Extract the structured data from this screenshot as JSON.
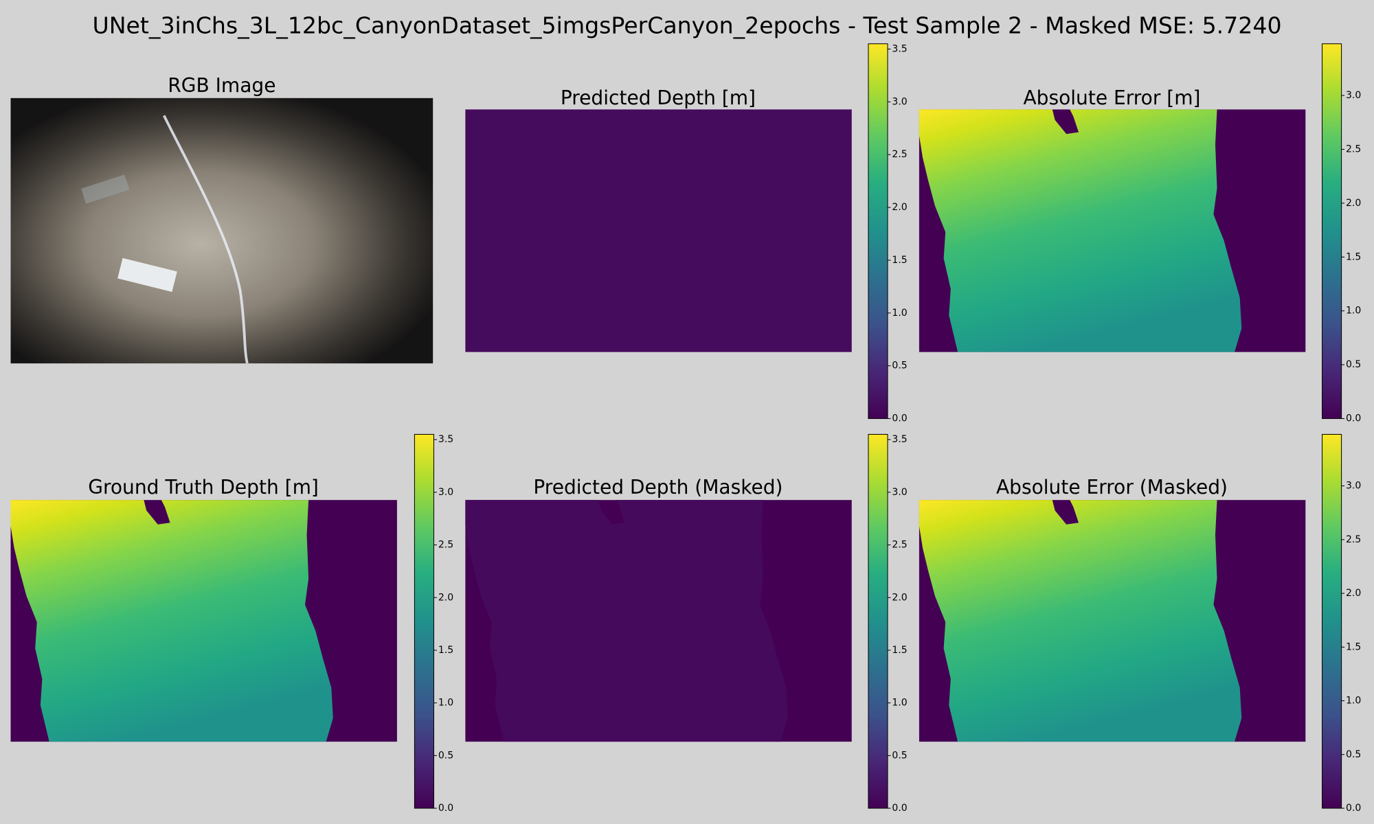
{
  "title": "UNet_3inChs_3L_12bc_CanyonDataset_5imgsPerCanyon_2epochs - Test Sample 2 - Masked MSE: 5.7240",
  "chart_data": [
    {
      "type": "image",
      "title": "RGB Image"
    },
    {
      "type": "heatmap",
      "title": "Predicted Depth [m]",
      "colormap": "viridis",
      "clim": [
        0,
        3.55
      ],
      "cticks": [
        {
          "value": 0,
          "label": "0.0"
        },
        {
          "value": 0.5,
          "label": "0.5"
        },
        {
          "value": 1,
          "label": "1.0"
        },
        {
          "value": 1.5,
          "label": "1.5"
        },
        {
          "value": 2,
          "label": "2.0"
        },
        {
          "value": 2.5,
          "label": "2.5"
        },
        {
          "value": 3,
          "label": "3.0"
        },
        {
          "value": 3.5,
          "label": "3.5"
        }
      ]
    },
    {
      "type": "heatmap",
      "title": "Absolute Error [m]",
      "colormap": "viridis",
      "clim": [
        0,
        3.48
      ],
      "cticks": [
        {
          "value": 0,
          "label": "0.0"
        },
        {
          "value": 0.5,
          "label": "0.5"
        },
        {
          "value": 1,
          "label": "1.0"
        },
        {
          "value": 1.5,
          "label": "1.5"
        },
        {
          "value": 2,
          "label": "2.0"
        },
        {
          "value": 2.5,
          "label": "2.5"
        },
        {
          "value": 3,
          "label": "3.0"
        }
      ]
    },
    {
      "type": "heatmap",
      "title": "Ground Truth Depth [m]",
      "colormap": "viridis",
      "clim": [
        0,
        3.55
      ],
      "cticks": [
        {
          "value": 0,
          "label": "0.0"
        },
        {
          "value": 0.5,
          "label": "0.5"
        },
        {
          "value": 1,
          "label": "1.0"
        },
        {
          "value": 1.5,
          "label": "1.5"
        },
        {
          "value": 2,
          "label": "2.0"
        },
        {
          "value": 2.5,
          "label": "2.5"
        },
        {
          "value": 3,
          "label": "3.0"
        },
        {
          "value": 3.5,
          "label": "3.5"
        }
      ]
    },
    {
      "type": "heatmap",
      "title": "Predicted Depth (Masked)",
      "colormap": "viridis",
      "clim": [
        0,
        3.55
      ],
      "cticks": [
        {
          "value": 0,
          "label": "0.0"
        },
        {
          "value": 0.5,
          "label": "0.5"
        },
        {
          "value": 1,
          "label": "1.0"
        },
        {
          "value": 1.5,
          "label": "1.5"
        },
        {
          "value": 2,
          "label": "2.0"
        },
        {
          "value": 2.5,
          "label": "2.5"
        },
        {
          "value": 3,
          "label": "3.0"
        },
        {
          "value": 3.5,
          "label": "3.5"
        }
      ]
    },
    {
      "type": "heatmap",
      "title": "Absolute Error (Masked)",
      "colormap": "viridis",
      "clim": [
        0,
        3.48
      ],
      "cticks": [
        {
          "value": 0,
          "label": "0.0"
        },
        {
          "value": 0.5,
          "label": "0.5"
        },
        {
          "value": 1,
          "label": "1.0"
        },
        {
          "value": 1.5,
          "label": "1.5"
        },
        {
          "value": 2,
          "label": "2.0"
        },
        {
          "value": 2.5,
          "label": "2.5"
        },
        {
          "value": 3,
          "label": "3.0"
        }
      ]
    }
  ]
}
